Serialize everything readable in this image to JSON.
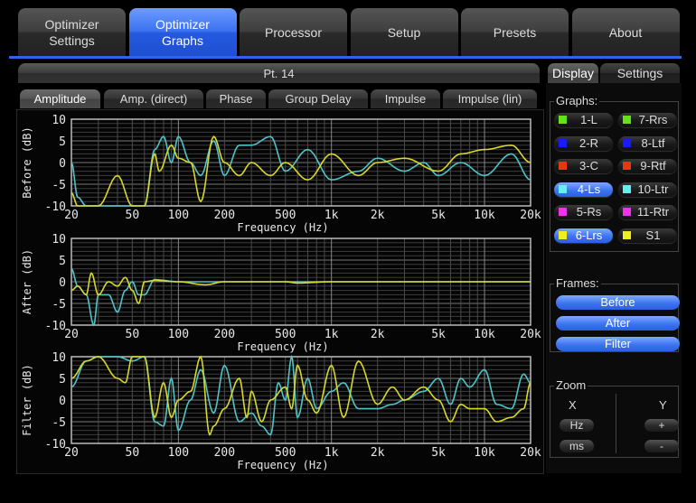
{
  "main_tabs": [
    {
      "label": "Optimizer\nSettings",
      "active": false
    },
    {
      "label": "Optimizer\nGraphs",
      "active": true
    },
    {
      "label": "Processor",
      "active": false
    },
    {
      "label": "Setup",
      "active": false
    },
    {
      "label": "Presets",
      "active": false
    },
    {
      "label": "About",
      "active": false
    }
  ],
  "point_title": "Pt. 14",
  "sub_tabs": [
    {
      "label": "Amplitude",
      "active": true
    },
    {
      "label": "Amp. (direct)",
      "active": false
    },
    {
      "label": "Phase",
      "active": false
    },
    {
      "label": "Group Delay",
      "active": false
    },
    {
      "label": "Impulse",
      "active": false
    },
    {
      "label": "Impulse (lin)",
      "active": false
    }
  ],
  "right_tabs": [
    {
      "label": "Display",
      "active": true
    },
    {
      "label": "Settings",
      "active": false
    }
  ],
  "graphs": {
    "label": "Graphs:",
    "items": [
      {
        "label": "1-L",
        "color": "#66e01a",
        "on": false
      },
      {
        "label": "7-Rrs",
        "color": "#66e01a",
        "on": false
      },
      {
        "label": "2-R",
        "color": "#1a1aff",
        "on": false
      },
      {
        "label": "8-Ltf",
        "color": "#1a1aff",
        "on": false
      },
      {
        "label": "3-C",
        "color": "#ee3311",
        "on": false
      },
      {
        "label": "9-Rtf",
        "color": "#ee3311",
        "on": false
      },
      {
        "label": "4-Ls",
        "color": "#66eeee",
        "on": true
      },
      {
        "label": "10-Ltr",
        "color": "#66eeee",
        "on": false
      },
      {
        "label": "5-Rs",
        "color": "#ee33ee",
        "on": false
      },
      {
        "label": "11-Rtr",
        "color": "#ee33ee",
        "on": false
      },
      {
        "label": "6-Lrs",
        "color": "#eeee22",
        "on": true
      },
      {
        "label": "S1",
        "color": "#eeee22",
        "on": false
      }
    ]
  },
  "frames": {
    "label": "Frames:",
    "buttons": [
      "Before",
      "After",
      "Filter"
    ]
  },
  "zoom": {
    "label": "Zoom",
    "x_label": "X",
    "y_label": "Y",
    "x_buttons": [
      "Hz",
      "ms"
    ],
    "y_buttons": [
      "+",
      "-"
    ]
  },
  "chart_data": [
    {
      "type": "line",
      "ylabel": "Before (dB)",
      "xlabel": "Frequency (Hz)",
      "xscale": "log",
      "xlim": [
        20,
        20000
      ],
      "ylim": [
        -10,
        10
      ],
      "yticks": [
        "10",
        "5",
        "0",
        "-5",
        "-10"
      ],
      "xticks": [
        20,
        50,
        100,
        200,
        500,
        1000,
        2000,
        5000,
        10000,
        20000
      ],
      "xtick_labels": [
        "20",
        "50",
        "100",
        "200",
        "500",
        "1k",
        "2k",
        "5k",
        "10k",
        "20k"
      ],
      "grid": true,
      "series": [
        {
          "name": "4-Ls",
          "color": "#4fc4c8",
          "x": [
            20,
            22,
            25,
            30,
            40,
            50,
            60,
            70,
            80,
            90,
            100,
            120,
            140,
            170,
            200,
            250,
            300,
            400,
            500,
            700,
            1000,
            1500,
            2000,
            3000,
            4000,
            5000,
            7000,
            10000,
            15000,
            20000
          ],
          "y": [
            0,
            -8,
            -10,
            -10,
            -10,
            -10,
            -10,
            3,
            6,
            0,
            6,
            0,
            -3,
            5,
            -3,
            4,
            4,
            6,
            -2,
            3,
            -4,
            -2,
            1,
            -2,
            0,
            -3,
            0,
            -3,
            2,
            -4
          ]
        },
        {
          "name": "6-Lrs",
          "color": "#d8d82a",
          "x": [
            20,
            22,
            25,
            30,
            40,
            50,
            60,
            70,
            75,
            90,
            100,
            120,
            140,
            170,
            200,
            250,
            300,
            400,
            500,
            700,
            1000,
            1500,
            2000,
            3000,
            5000,
            7000,
            10000,
            15000,
            20000
          ],
          "y": [
            -7,
            -10,
            -10,
            -10,
            -3,
            -10,
            -10,
            2,
            -2,
            4,
            1,
            0,
            -9,
            6,
            0,
            -3,
            0,
            -3,
            0,
            -4,
            2,
            -3,
            0,
            1,
            -2,
            2,
            3,
            4,
            0
          ]
        }
      ]
    },
    {
      "type": "line",
      "ylabel": "After (dB)",
      "xlabel": "Frequency (Hz)",
      "xscale": "log",
      "xlim": [
        20,
        20000
      ],
      "ylim": [
        -10,
        10
      ],
      "yticks": [
        "10",
        "5",
        "0",
        "-5",
        "-10"
      ],
      "xticks": [
        20,
        50,
        100,
        200,
        500,
        1000,
        2000,
        5000,
        10000,
        20000
      ],
      "xtick_labels": [
        "20",
        "50",
        "100",
        "200",
        "500",
        "1k",
        "2k",
        "5k",
        "10k",
        "20k"
      ],
      "grid": true,
      "series": [
        {
          "name": "4-Ls",
          "color": "#4fc4c8",
          "x": [
            20,
            22,
            25,
            28,
            30,
            35,
            40,
            45,
            50,
            55,
            60,
            70,
            100,
            150,
            200,
            500,
            1000,
            20000
          ],
          "y": [
            3,
            -1,
            -3,
            -10,
            -3,
            -3,
            -7,
            -2,
            0,
            -3,
            -3,
            0.5,
            0,
            0,
            0,
            0,
            0,
            0
          ]
        },
        {
          "name": "6-Lrs",
          "color": "#d8d82a",
          "x": [
            20,
            22,
            25,
            27,
            30,
            35,
            40,
            45,
            50,
            55,
            60,
            70,
            100,
            150,
            200,
            500,
            600,
            1000,
            20000
          ],
          "y": [
            -2,
            -1,
            -3,
            2,
            -3,
            0,
            -1,
            1,
            -2,
            -5,
            0,
            0.3,
            0,
            -0.7,
            0,
            0,
            -0.3,
            0,
            0
          ]
        }
      ]
    },
    {
      "type": "line",
      "ylabel": "Filter (dB)",
      "xlabel": "Frequency (Hz)",
      "xscale": "log",
      "xlim": [
        20,
        20000
      ],
      "ylim": [
        -10,
        10
      ],
      "yticks": [
        "10",
        "5",
        "0",
        "-5",
        "-10"
      ],
      "xticks": [
        20,
        50,
        100,
        200,
        500,
        1000,
        2000,
        5000,
        10000,
        20000
      ],
      "xtick_labels": [
        "20",
        "50",
        "100",
        "200",
        "500",
        "1k",
        "2k",
        "5k",
        "10k",
        "20k"
      ],
      "grid": true,
      "series": [
        {
          "name": "4-Ls",
          "color": "#4fc4c8",
          "x": [
            20,
            25,
            30,
            40,
            50,
            60,
            70,
            80,
            90,
            100,
            120,
            140,
            170,
            200,
            250,
            300,
            350,
            400,
            450,
            500,
            550,
            600,
            700,
            800,
            1000,
            1200,
            1500,
            2000,
            2500,
            3000,
            4000,
            5000,
            6000,
            7000,
            8000,
            10000,
            12000,
            15000,
            18000,
            20000
          ],
          "y": [
            3,
            9,
            10,
            10,
            9,
            10,
            -5,
            -6,
            5,
            -7,
            0,
            7,
            -3,
            8,
            -5,
            -3,
            -6,
            -8,
            4,
            0,
            10,
            -4,
            5,
            -2,
            2,
            4,
            -2,
            -2,
            -1,
            0,
            2,
            5,
            -1,
            5,
            3,
            7,
            -1,
            -2,
            6,
            4
          ]
        },
        {
          "name": "6-Lrs",
          "color": "#d8d82a",
          "x": [
            20,
            25,
            30,
            40,
            45,
            50,
            55,
            60,
            70,
            80,
            90,
            100,
            120,
            140,
            160,
            170,
            200,
            250,
            280,
            300,
            350,
            400,
            500,
            550,
            600,
            700,
            800,
            1000,
            1200,
            1500,
            2000,
            2500,
            3000,
            4000,
            5000,
            6000,
            7000,
            8000,
            10000,
            12000,
            15000,
            18000,
            20000
          ],
          "y": [
            5,
            9,
            10,
            5,
            4,
            10,
            10,
            10,
            -4,
            4,
            -4,
            0,
            2,
            10,
            -8,
            -6,
            -2,
            5,
            -4,
            2,
            -5,
            0,
            3,
            -2,
            8,
            0,
            -3,
            8,
            -4,
            9,
            -1,
            3,
            0,
            3,
            0,
            -5,
            -1,
            -2,
            -2,
            -5,
            -4,
            -2,
            4
          ]
        }
      ]
    }
  ]
}
